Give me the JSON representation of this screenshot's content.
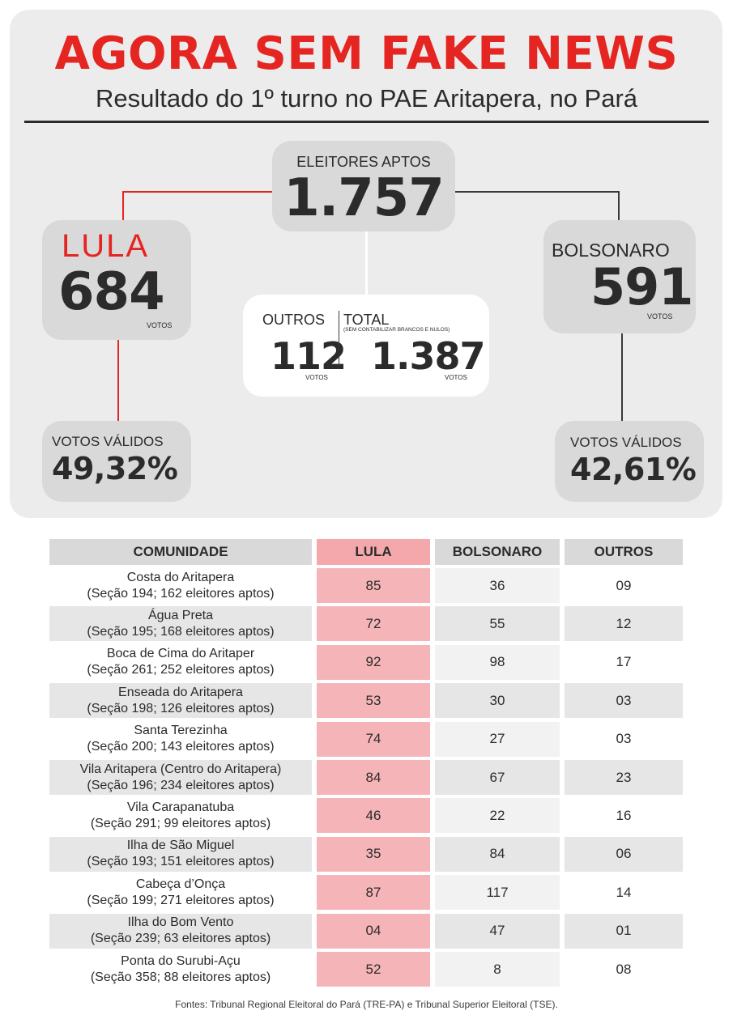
{
  "header": {
    "title": "AGORA SEM FAKE NEWS",
    "subtitle": "Resultado do 1º turno no PAE Aritapera, no Pará"
  },
  "summary": {
    "eleitores_label": "ELEITORES APTOS",
    "eleitores_value": "1.757",
    "lula_label": "LULA",
    "lula_value": "684",
    "lula_unit": "VOTOS",
    "bolsonaro_label": "BOLSONARO",
    "bolsonaro_value": "591",
    "bolsonaro_unit": "VOTOS",
    "outros_label": "OUTROS",
    "outros_value": "112",
    "outros_unit": "VOTOS",
    "total_label": "TOTAL",
    "total_note": "(SEM CONTABILIZAR BRANCOS E NULOS)",
    "total_value": "1.387",
    "total_unit": "VOTOS",
    "lula_valid_label": "VOTOS VÁLIDOS",
    "lula_valid_value": "49,32%",
    "bolsonaro_valid_label": "VOTOS VÁLIDOS",
    "bolsonaro_valid_value": "42,61%"
  },
  "table": {
    "headers": [
      "COMUNIDADE",
      "LULA",
      "BOLSONARO",
      "OUTROS"
    ],
    "rows": [
      {
        "name": "Costa do Aritapera",
        "section": "(Seção 194; 162 eleitores aptos)",
        "lula": "85",
        "bolsonaro": "36",
        "outros": "09"
      },
      {
        "name": "Água Preta",
        "section": "(Seção 195; 168 eleitores aptos)",
        "lula": "72",
        "bolsonaro": "55",
        "outros": "12"
      },
      {
        "name": "Boca de Cima do Aritaper",
        "section": "(Seção 261; 252 eleitores aptos)",
        "lula": "92",
        "bolsonaro": "98",
        "outros": "17"
      },
      {
        "name": "Enseada do Aritapera",
        "section": "(Seção 198; 126 eleitores aptos)",
        "lula": "53",
        "bolsonaro": "30",
        "outros": "03"
      },
      {
        "name": "Santa Terezinha",
        "section": "(Seção 200; 143 eleitores aptos)",
        "lula": "74",
        "bolsonaro": "27",
        "outros": "03"
      },
      {
        "name": "Vila Aritapera (Centro do Aritapera)",
        "section": "(Seção 196; 234 eleitores aptos)",
        "lula": "84",
        "bolsonaro": "67",
        "outros": "23"
      },
      {
        "name": "Vila Carapanatuba",
        "section": "(Seção 291; 99 eleitores aptos)",
        "lula": "46",
        "bolsonaro": "22",
        "outros": "16"
      },
      {
        "name": "Ilha de São Miguel",
        "section": "(Seção 193; 151 eleitores aptos)",
        "lula": "35",
        "bolsonaro": "84",
        "outros": "06"
      },
      {
        "name": "Cabeça d’Onça",
        "section": "(Seção 199; 271 eleitores aptos)",
        "lula": "87",
        "bolsonaro": "117",
        "outros": "14"
      },
      {
        "name": "Ilha do Bom Vento",
        "section": "(Seção 239; 63 eleitores aptos)",
        "lula": "04",
        "bolsonaro": "47",
        "outros": "01"
      },
      {
        "name": "Ponta do Surubi-Açu",
        "section": "(Seção 358; 88 eleitores aptos)",
        "lula": "52",
        "bolsonaro": "8",
        "outros": "08"
      }
    ]
  },
  "footer": "Fontes: Tribunal Regional Eleitoral do Pará (TRE-PA) e Tribunal Superior Eleitoral (TSE).",
  "colors": {
    "accent_red": "#e52521",
    "panel_grey": "#ececec",
    "box_grey": "#d9d9d9",
    "lula_cell": "#f5b5b8",
    "lula_header": "#f4a8ab",
    "row_grey": "#e6e6e6"
  }
}
